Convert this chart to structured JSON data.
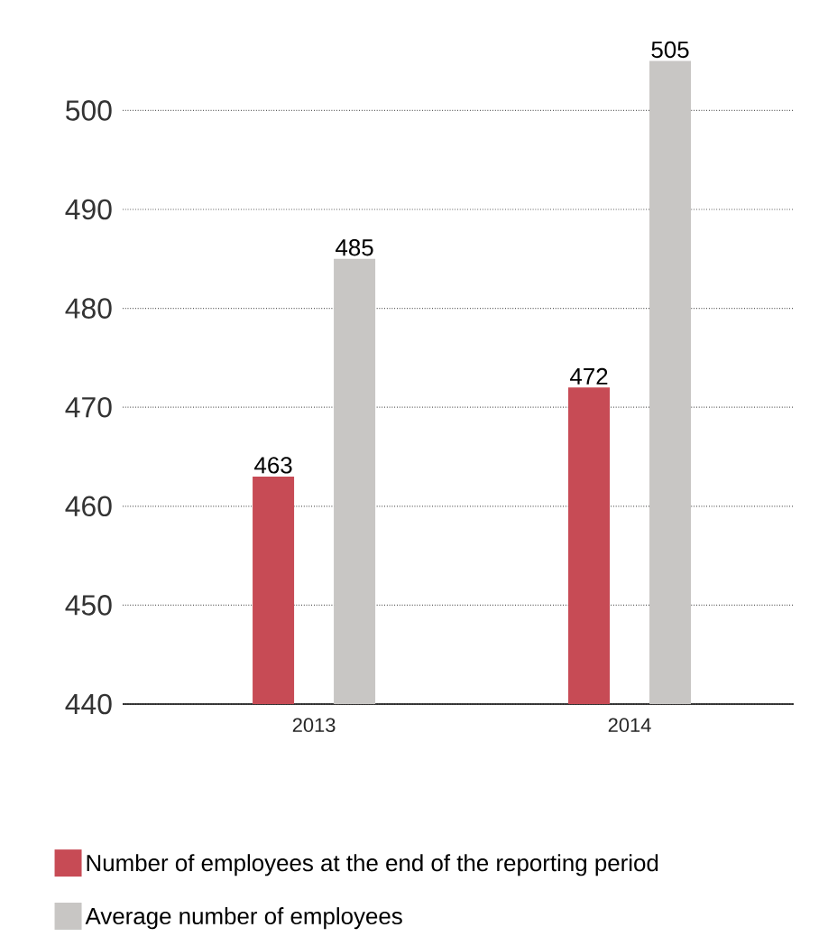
{
  "chart_data": {
    "type": "bar",
    "categories": [
      "2013",
      "2014"
    ],
    "series": [
      {
        "name": "Number of employees at the end of the reporting period",
        "color": "#c74b55",
        "values": [
          463,
          472
        ]
      },
      {
        "name": "Average number of employees",
        "color": "#c8c6c4",
        "values": [
          485,
          505
        ]
      }
    ],
    "ylim": [
      440,
      505
    ],
    "yticks": [
      440,
      450,
      460,
      470,
      480,
      490,
      500
    ],
    "grid": "y",
    "data_labels": true,
    "legend": "bottom"
  }
}
